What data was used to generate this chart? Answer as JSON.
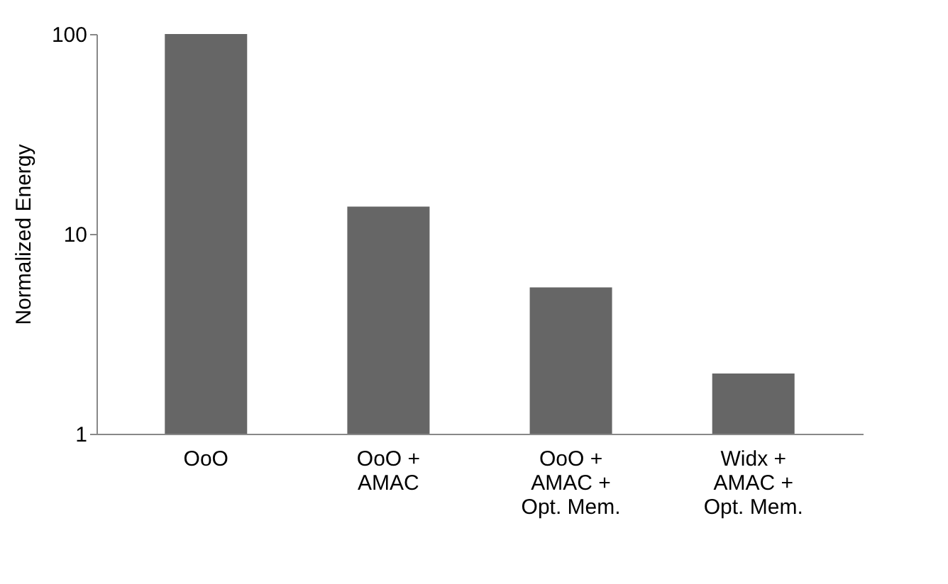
{
  "chart_data": {
    "type": "bar",
    "ylabel": "Normalized Energy",
    "categories": [
      "OoO",
      "OoO +\nAMAC",
      "OoO +\nAMAC +\nOpt. Mem.",
      "Widx +\nAMAC +\nOpt. Mem."
    ],
    "values": [
      100,
      13.7,
      5.4,
      2.0
    ],
    "color": "#666666",
    "log": true,
    "ylim": [
      1,
      100
    ],
    "yticks": [
      1,
      10,
      100
    ],
    "grid": false
  }
}
